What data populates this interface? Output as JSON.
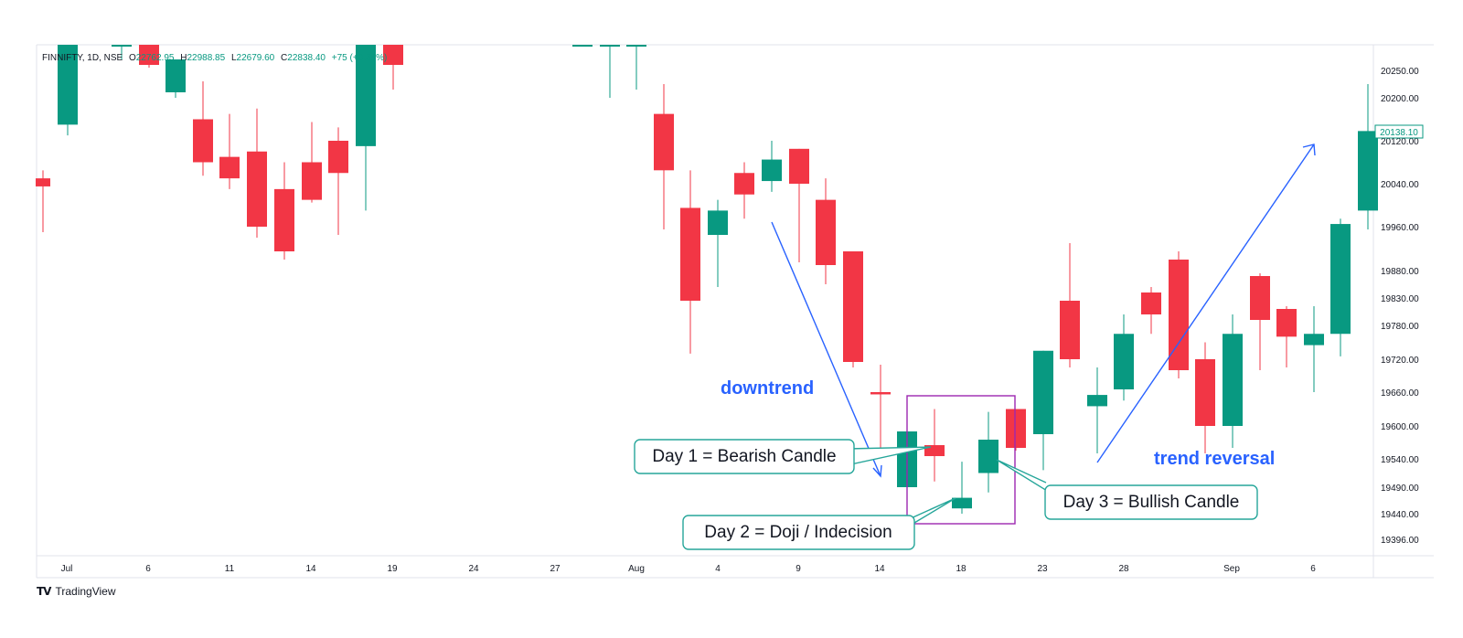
{
  "header": {
    "symbol": "FINNIFTY, 1D, NSE",
    "open_label": "O",
    "open": "22762.95",
    "high_label": "H",
    "high": "22988.85",
    "low_label": "L",
    "low": "22679.60",
    "close_label": "C",
    "close": "22838.40",
    "change": "+75 (+0.35%)"
  },
  "price_tag": "20138.10",
  "footer": {
    "logo": "𝗧𝗩",
    "brand": "TradingView"
  },
  "colors": {
    "up": "#089981",
    "down": "#f23645",
    "annotation_blue": "#2962ff",
    "callout_border": "#26a69a",
    "box": "#9c27b0"
  },
  "annotations": {
    "downtrend": "downtrend",
    "trend_reversal": "trend reversal",
    "day1": "Day 1 = Bearish Candle",
    "day2": "Day 2 = Doji / Indecision",
    "day3": "Day 3 = Bullish Candle"
  },
  "chart_data": {
    "type": "candlestick",
    "title": "FINNIFTY, 1D, NSE",
    "ylim": [
      19380,
      20320
    ],
    "y_ticks": [
      "20250.00",
      "20200.00",
      "20120.00",
      "20040.00",
      "19960.00",
      "19880.00",
      "19830.00",
      "19780.00",
      "19720.00",
      "19660.00",
      "19600.00",
      "19540.00",
      "19490.00",
      "19440.00",
      "19396.00"
    ],
    "x_ticks": [
      "Jul",
      "6",
      "11",
      "14",
      "19",
      "24",
      "27",
      "Aug",
      "4",
      "9",
      "14",
      "18",
      "23",
      "28",
      "Sep",
      "6"
    ],
    "grid": false,
    "candles": [
      {
        "o": 20050,
        "h": 20065,
        "l": 19950,
        "c": 20035
      },
      {
        "o": 20150,
        "h": 20300,
        "l": 20130,
        "c": 20300
      },
      {
        "o": 20300,
        "h": 20320,
        "l": 20270,
        "c": 20300
      },
      {
        "o": 20300,
        "h": 20300,
        "l": 20255,
        "c": 20260
      },
      {
        "o": 20210,
        "h": 20270,
        "l": 20200,
        "c": 20270
      },
      {
        "o": 20160,
        "h": 20230,
        "l": 20055,
        "c": 20080
      },
      {
        "o": 20090,
        "h": 20170,
        "l": 20030,
        "c": 20050
      },
      {
        "o": 20100,
        "h": 20180,
        "l": 19940,
        "c": 19960
      },
      {
        "o": 20030,
        "h": 20080,
        "l": 19900,
        "c": 19915
      },
      {
        "o": 20080,
        "h": 20155,
        "l": 20005,
        "c": 20010
      },
      {
        "o": 20120,
        "h": 20145,
        "l": 19945,
        "c": 20060
      },
      {
        "o": 20110,
        "h": 20300,
        "l": 19990,
        "c": 20300
      },
      {
        "o": 20300,
        "h": 20300,
        "l": 20215,
        "c": 20260
      },
      {
        "o": 20300,
        "h": 20320,
        "l": 20300,
        "c": 20300
      },
      {
        "o": 20300,
        "h": 20300,
        "l": 20200,
        "c": 20300
      },
      {
        "o": 20300,
        "h": 20300,
        "l": 20215,
        "c": 20300
      },
      {
        "o": 20300,
        "h": 20300,
        "l": 20270,
        "c": 20300
      },
      {
        "o": 20170,
        "h": 20225,
        "l": 19955,
        "c": 20065
      },
      {
        "o": 19995,
        "h": 20065,
        "l": 19730,
        "c": 19825
      },
      {
        "o": 19945,
        "h": 20010,
        "l": 19850,
        "c": 19990
      },
      {
        "o": 20060,
        "h": 20080,
        "l": 19975,
        "c": 20020
      },
      {
        "o": 20045,
        "h": 20120,
        "l": 20025,
        "c": 20085
      },
      {
        "o": 20105,
        "h": 20105,
        "l": 19895,
        "c": 20040
      },
      {
        "o": 20010,
        "h": 20050,
        "l": 19855,
        "c": 19890
      },
      {
        "o": 19915,
        "h": 19915,
        "l": 19705,
        "c": 19715
      },
      {
        "o": 19660,
        "h": 19710,
        "l": 19545,
        "c": 19656
      },
      {
        "o": 19490,
        "h": 19590,
        "l": 19490,
        "c": 19590
      },
      {
        "o": 19565,
        "h": 19630,
        "l": 19500,
        "c": 19545
      },
      {
        "o": 19450,
        "h": 19535,
        "l": 19440,
        "c": 19470
      },
      {
        "o": 19515,
        "h": 19625,
        "l": 19480,
        "c": 19575
      },
      {
        "o": 19630,
        "h": 19630,
        "l": 19555,
        "c": 19560
      },
      {
        "o": 19585,
        "h": 19735,
        "l": 19520,
        "c": 19735
      },
      {
        "o": 19825,
        "h": 19930,
        "l": 19705,
        "c": 19720
      },
      {
        "o": 19635,
        "h": 19705,
        "l": 19550,
        "c": 19655
      },
      {
        "o": 19665,
        "h": 19800,
        "l": 19645,
        "c": 19765
      },
      {
        "o": 19840,
        "h": 19850,
        "l": 19765,
        "c": 19800
      },
      {
        "o": 19900,
        "h": 19915,
        "l": 19685,
        "c": 19700
      },
      {
        "o": 19720,
        "h": 19750,
        "l": 19550,
        "c": 19600
      },
      {
        "o": 19600,
        "h": 19800,
        "l": 19560,
        "c": 19765
      },
      {
        "o": 19870,
        "h": 19875,
        "l": 19700,
        "c": 19790
      },
      {
        "o": 19810,
        "h": 19815,
        "l": 19705,
        "c": 19760
      },
      {
        "o": 19745,
        "h": 19815,
        "l": 19660,
        "c": 19765
      },
      {
        "o": 19765,
        "h": 19975,
        "l": 19725,
        "c": 19965
      },
      {
        "o": 19990,
        "h": 20225,
        "l": 19955,
        "c": 20138.1
      }
    ]
  }
}
